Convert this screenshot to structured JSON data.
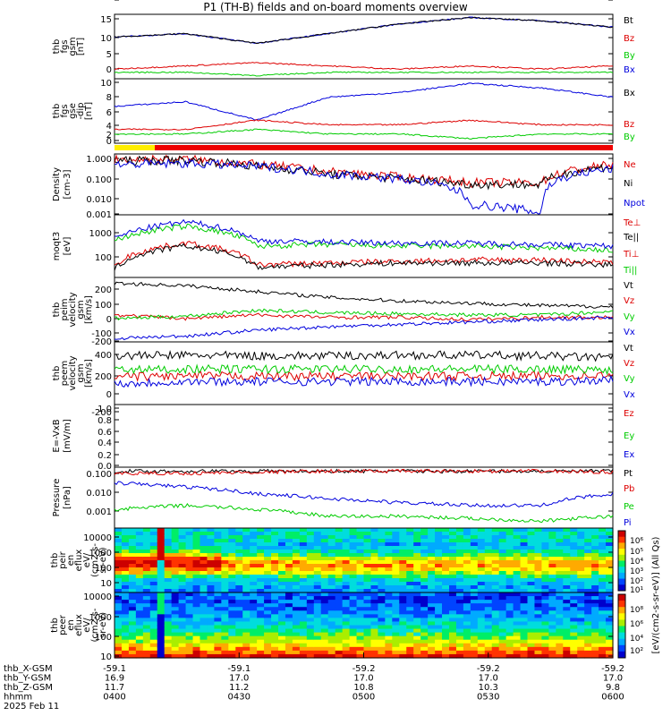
{
  "title": "P1 (TH-B) fields and on-board moments overview",
  "colors": {
    "black": "#000000",
    "red": "#dd0000",
    "green": "#00cc00",
    "blue": "#0000dd",
    "yellow": "#ffee00",
    "barred": "#ee0000"
  },
  "panels": [
    {
      "ylabel": [
        "thb",
        "fgs",
        "gsm",
        "[nT]"
      ],
      "ticks": [
        "15",
        "10",
        "5",
        "0"
      ],
      "legend": [
        {
          "t": "Bt",
          "c": "black"
        },
        {
          "t": "Bz",
          "c": "red"
        },
        {
          "t": "By",
          "c": "green"
        },
        {
          "t": "Bx",
          "c": "blue"
        }
      ]
    },
    {
      "ylabel": [
        "thb",
        "fgs",
        "gse",
        "-dip",
        "[nT]"
      ],
      "ticks": [
        "10",
        "8",
        "6",
        "4",
        "2",
        "0",
        "-2"
      ],
      "legend": [
        {
          "t": "Bx",
          "c": "black"
        },
        {
          "t": "Bz",
          "c": "red"
        },
        {
          "t": "By",
          "c": "green"
        }
      ]
    },
    {
      "ylabel": [
        "Density",
        "[cm-3]"
      ],
      "ticks": [
        "1.000",
        "0.100",
        "0.010",
        "0.001"
      ],
      "legend": [
        {
          "t": "Ne",
          "c": "red"
        },
        {
          "t": "Ni",
          "c": "black"
        },
        {
          "t": "Npot",
          "c": "blue"
        }
      ]
    },
    {
      "ylabel": [
        "moqt3",
        "[eV]"
      ],
      "ticks": [
        "1000",
        "100"
      ],
      "legend": [
        {
          "t": "Te⊥",
          "c": "red"
        },
        {
          "t": "Te||",
          "c": "black"
        },
        {
          "t": "Ti⊥",
          "c": "red"
        },
        {
          "t": "Ti||",
          "c": "green"
        }
      ]
    },
    {
      "ylabel": [
        "thb",
        "peim",
        "velocity",
        "gsm",
        "[km/s]"
      ],
      "ticks": [
        "200",
        "100",
        "0",
        "-100",
        "-200"
      ],
      "legend": [
        {
          "t": "Vt",
          "c": "black"
        },
        {
          "t": "Vz",
          "c": "red"
        },
        {
          "t": "Vy",
          "c": "green"
        },
        {
          "t": "Vx",
          "c": "blue"
        }
      ]
    },
    {
      "ylabel": [
        "thb",
        "peem",
        "velocity",
        "gsm",
        "[km/s]"
      ],
      "ticks": [
        "400",
        "200",
        "0",
        "-200",
        "-400"
      ],
      "legend": [
        {
          "t": "Vt",
          "c": "black"
        },
        {
          "t": "Vz",
          "c": "red"
        },
        {
          "t": "Vy",
          "c": "green"
        },
        {
          "t": "Vx",
          "c": "blue"
        }
      ]
    },
    {
      "ylabel": [
        "E=-VxB",
        "[mV/m]"
      ],
      "ticks": [
        "1.0",
        "0.8",
        "0.6",
        "0.4",
        "0.2",
        "0.0"
      ],
      "legend": [
        {
          "t": "Ez",
          "c": "red"
        },
        {
          "t": "Ey",
          "c": "green"
        },
        {
          "t": "Ex",
          "c": "blue"
        }
      ]
    },
    {
      "ylabel": [
        "Pressure",
        "[nPa]"
      ],
      "ticks": [
        "0.100",
        "0.010",
        "0.001"
      ],
      "legend": [
        {
          "t": "Pt",
          "c": "black"
        },
        {
          "t": "Pb",
          "c": "red"
        },
        {
          "t": "Pe",
          "c": "green"
        },
        {
          "t": "Pi",
          "c": "blue"
        }
      ]
    },
    {
      "ylabel": [
        "thb",
        "peir",
        "en",
        "eflux",
        "eV/",
        "(cm2-s-",
        "sr-eV)"
      ],
      "ticks": [
        "10000",
        "1000",
        "100",
        "10"
      ],
      "legend": []
    },
    {
      "ylabel": [
        "thb",
        "peer",
        "en",
        "eflux",
        "eV/",
        "(cm2-s-",
        "sr-eV)"
      ],
      "ticks": [
        "10000",
        "1000",
        "100",
        "10"
      ],
      "legend": []
    }
  ],
  "colorbar": {
    "label": "[eV/(cm2-s-sr-eV)] (All Qs)",
    "ticks": [
      "10⁶",
      "10⁵",
      "10⁴",
      "10³",
      "10²",
      "10¹",
      "10⁸",
      "10⁶",
      "10⁴",
      "10²"
    ]
  },
  "footer": {
    "rows": [
      {
        "label": "thb_X-GSM",
        "values": [
          "-59.1",
          "-59.1",
          "-59.2",
          "-59.2",
          "-59.2"
        ]
      },
      {
        "label": "thb_Y-GSM",
        "values": [
          "16.9",
          "17.0",
          "17.0",
          "17.0",
          "17.0"
        ]
      },
      {
        "label": "thb_Z-GSM",
        "values": [
          "11.7",
          "11.2",
          "10.8",
          "10.3",
          "9.8"
        ]
      },
      {
        "label": "hhmm",
        "values": [
          "0400",
          "0430",
          "0500",
          "0530",
          "0600"
        ]
      }
    ],
    "date": "2025 Feb 11"
  },
  "chart_data": [
    {
      "type": "line",
      "title": "thb fgs gsm [nT]",
      "series": [
        {
          "name": "Bt",
          "values": [
            10,
            11,
            8,
            11,
            14,
            16,
            15,
            13
          ]
        },
        {
          "name": "Bz",
          "values": [
            0,
            1,
            2,
            1,
            0,
            1,
            0,
            1
          ]
        },
        {
          "name": "By",
          "values": [
            -1,
            -1,
            -2,
            -1,
            -1,
            -1,
            -1,
            -1
          ]
        },
        {
          "name": "Bx",
          "values": [
            10,
            11,
            8,
            11,
            14,
            16,
            15,
            13
          ]
        }
      ]
    },
    {
      "type": "line",
      "title": "thb fgs gse-dip [nT]",
      "series": [
        {
          "name": "Bx",
          "values": [
            5,
            6,
            2,
            7,
            8,
            10,
            9,
            7
          ]
        },
        {
          "name": "Bz",
          "values": [
            0,
            0,
            2,
            1,
            1,
            2,
            1,
            1
          ]
        },
        {
          "name": "By",
          "values": [
            -1,
            -1,
            0,
            -1,
            -1,
            -2,
            -1,
            -1
          ]
        }
      ]
    },
    {
      "type": "line",
      "title": "Density [cm-3]",
      "series": [
        {
          "name": "Ne",
          "values": [
            1.0,
            1.0,
            0.5,
            0.2,
            0.1,
            0.05,
            0.05,
            0.5
          ]
        },
        {
          "name": "Ni",
          "values": [
            0.8,
            0.9,
            0.4,
            0.15,
            0.08,
            0.04,
            0.04,
            0.4
          ]
        },
        {
          "name": "Npot",
          "values": [
            0.5,
            0.6,
            0.4,
            0.15,
            0.08,
            0.003,
            0.001,
            0.3
          ]
        }
      ]
    },
    {
      "type": "line",
      "title": "moqt3 [eV]",
      "series": [
        {
          "name": "Ti||",
          "values": [
            500,
            2000,
            300,
            350,
            300,
            300,
            250,
            200
          ]
        },
        {
          "name": "Ti⊥",
          "values": [
            600,
            3000,
            500,
            450,
            400,
            400,
            350,
            300
          ]
        },
        {
          "name": "Te⊥",
          "values": [
            40,
            400,
            50,
            60,
            70,
            80,
            80,
            60
          ]
        },
        {
          "name": "Te||",
          "values": [
            30,
            300,
            40,
            50,
            60,
            60,
            60,
            50
          ]
        }
      ]
    },
    {
      "type": "line",
      "title": "thb peim velocity gsm [km/s]",
      "series": [
        {
          "name": "Vt",
          "values": [
            250,
            230,
            180,
            130,
            100,
            80,
            60,
            50
          ]
        },
        {
          "name": "Vz",
          "values": [
            -20,
            -50,
            -20,
            -40,
            -40,
            -60,
            -40,
            -40
          ]
        },
        {
          "name": "Vy",
          "values": [
            -50,
            -30,
            20,
            0,
            -10,
            -20,
            -20,
            10
          ]
        },
        {
          "name": "Vx",
          "values": [
            -220,
            -200,
            -150,
            -120,
            -100,
            -80,
            -60,
            -40
          ]
        }
      ]
    },
    {
      "type": "line",
      "title": "thb peem velocity gsm [km/s]",
      "series": [
        {
          "name": "Vt",
          "values": [
            250,
            260,
            250,
            250,
            260,
            260,
            250,
            220
          ]
        },
        {
          "name": "Vz",
          "values": [
            -50,
            -40,
            -40,
            -40,
            -40,
            -40,
            -40,
            -30
          ]
        },
        {
          "name": "Vy",
          "values": [
            50,
            60,
            60,
            60,
            60,
            60,
            60,
            50
          ]
        },
        {
          "name": "Vx",
          "values": [
            -150,
            -120,
            -120,
            -120,
            -120,
            -120,
            -120,
            -100
          ]
        }
      ]
    },
    {
      "type": "line",
      "title": "E=-VxB [mV/m]",
      "series": [
        {
          "name": "Ez",
          "values": []
        },
        {
          "name": "Ey",
          "values": []
        },
        {
          "name": "Ex",
          "values": []
        }
      ]
    },
    {
      "type": "line",
      "title": "Pressure [nPa]",
      "series": [
        {
          "name": "Pt",
          "values": [
            0.1,
            0.1,
            0.1,
            0.1,
            0.1,
            0.1,
            0.1,
            0.1
          ]
        },
        {
          "name": "Pb",
          "values": [
            0.08,
            0.08,
            0.09,
            0.1,
            0.1,
            0.1,
            0.1,
            0.09
          ]
        },
        {
          "name": "Pe",
          "values": [
            0.002,
            0.003,
            0.002,
            0.001,
            0.001,
            0.0008,
            0.0006,
            0.001
          ]
        },
        {
          "name": "Pi",
          "values": [
            0.03,
            0.02,
            0.01,
            0.006,
            0.004,
            0.003,
            0.003,
            0.01
          ]
        }
      ]
    },
    {
      "type": "heatmap",
      "title": "thb peir en eflux",
      "ylim": [
        5,
        20000
      ]
    },
    {
      "type": "heatmap",
      "title": "thb peer en eflux",
      "ylim": [
        5,
        20000
      ]
    }
  ]
}
